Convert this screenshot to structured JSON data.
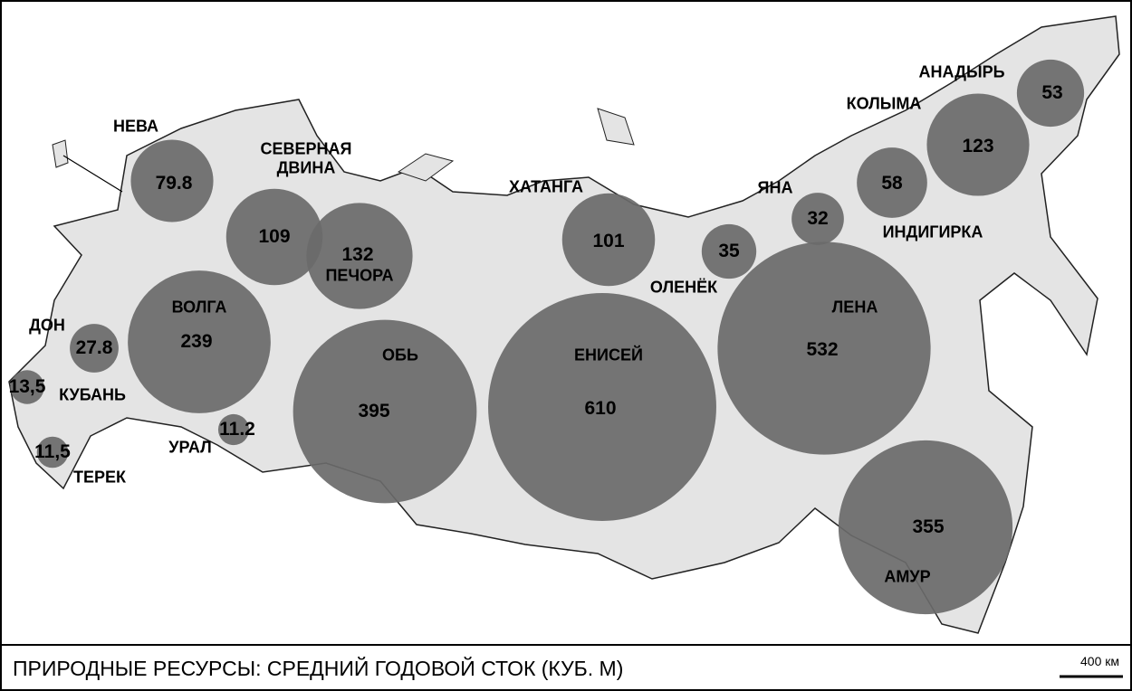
{
  "map": {
    "title": "ПРИРОДНЫЕ РЕСУРСЫ: СРЕДНИЙ ГОДОВОЙ СТОК (КУБ. М)",
    "scale_label": "400 км",
    "bubble_color": "#6a6a6a",
    "rivers": [
      {
        "name": "НЕВА",
        "value": 79.8
      },
      {
        "name": "СЕВЕРНАЯ ДВИНА",
        "value": 109
      },
      {
        "name": "ПЕЧОРА",
        "value": 132
      },
      {
        "name": "ВОЛГА",
        "value": 239
      },
      {
        "name": "ДОН",
        "value": 27.8
      },
      {
        "name": "КУБАНЬ",
        "value": 13.5,
        "value_label": "13,5"
      },
      {
        "name": "ТЕРЕК",
        "value": 11.5,
        "value_label": "11,5"
      },
      {
        "name": "УРАЛ",
        "value": 11.2
      },
      {
        "name": "ОБЬ",
        "value": 395
      },
      {
        "name": "ХАТАНГА",
        "value": 101
      },
      {
        "name": "ЕНИСЕЙ",
        "value": 610
      },
      {
        "name": "ОЛЕНЁК",
        "value": 35
      },
      {
        "name": "ЛЕНА",
        "value": 532
      },
      {
        "name": "ЯНА",
        "value": 32
      },
      {
        "name": "ИНДИГИРКА",
        "value": 58
      },
      {
        "name": "КОЛЫМА",
        "value": 123
      },
      {
        "name": "АНАДЫРЬ",
        "value": 53
      },
      {
        "name": "АМУР",
        "value": 355
      }
    ]
  }
}
